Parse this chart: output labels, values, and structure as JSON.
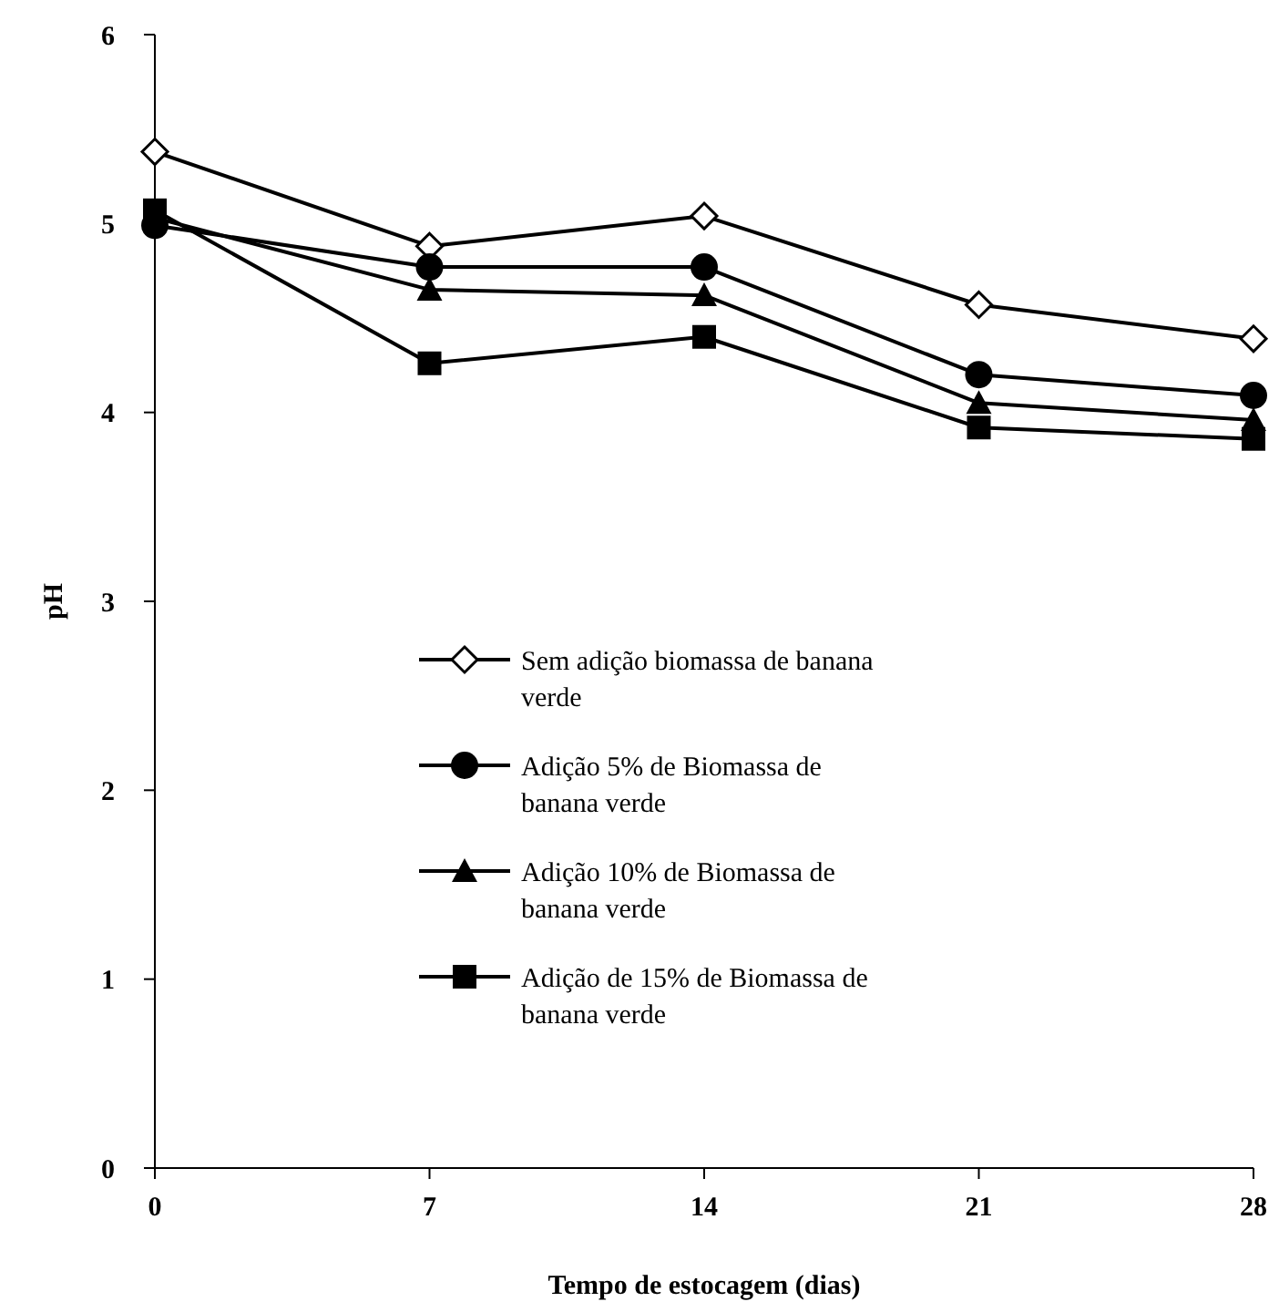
{
  "chart_data": {
    "type": "line",
    "xlabel": "Tempo de estocagem (dias)",
    "ylabel": "pH",
    "x": [
      0,
      7,
      14,
      21,
      28
    ],
    "xlim": [
      0,
      28
    ],
    "xticks": [
      0,
      7,
      14,
      21,
      28
    ],
    "ylim": [
      0,
      6
    ],
    "yticks": [
      0,
      1,
      2,
      3,
      4,
      5,
      6
    ],
    "grid": false,
    "legend": "left",
    "line_style": "solid",
    "series": [
      {
        "name": "Sem adição biomassa de banana verde",
        "color": "#000000",
        "marker": "diamond",
        "values": [
          5.38,
          4.88,
          5.04,
          4.57,
          4.39
        ]
      },
      {
        "name": "Adição 5% de Biomassa de banana verde",
        "color": "#000000",
        "marker": "circle",
        "values": [
          4.99,
          4.77,
          4.77,
          4.2,
          4.09
        ]
      },
      {
        "name": "Adição 10% de Biomassa de banana verde",
        "color": "#000000",
        "marker": "triangle",
        "values": [
          5.03,
          4.65,
          4.62,
          4.05,
          3.96
        ]
      },
      {
        "name": "Adição de 15% de Biomassa de banana verde",
        "color": "#000000",
        "marker": "square",
        "values": [
          5.07,
          4.26,
          4.4,
          3.92,
          3.86
        ]
      }
    ]
  }
}
